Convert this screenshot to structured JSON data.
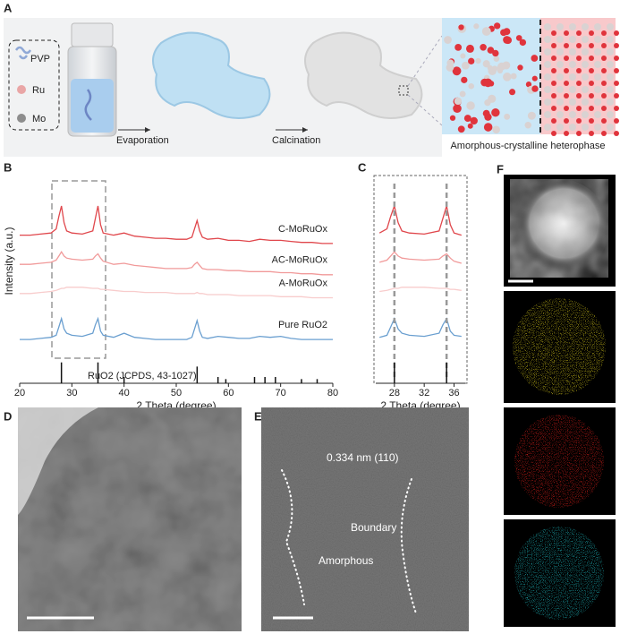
{
  "labels": [
    "A",
    "B",
    "C",
    "D",
    "E",
    "F"
  ],
  "schematic": {
    "legend": [
      "PVP",
      "Ru",
      "Mo"
    ],
    "steps": [
      "Evaporation",
      "Calcination"
    ],
    "caption": "Amorphous-crystalline heterophase"
  },
  "tem": {
    "annotations": [
      "0.334 nm (110)",
      "Boundary",
      "Amorphous"
    ]
  },
  "chart_data": [
    {
      "type": "line",
      "xlabel": "2 Theta (degree)",
      "ylabel": "Intensity (a.u.)",
      "x": [
        20,
        22,
        24,
        26,
        27,
        27.5,
        28,
        28.5,
        29,
        30,
        32,
        34,
        34.5,
        35,
        35.5,
        36,
        38,
        40,
        42,
        44,
        46,
        48,
        50,
        52,
        53,
        53.5,
        54,
        54.5,
        55,
        56,
        58,
        60,
        62,
        64,
        66,
        68,
        70,
        72,
        74,
        76,
        78,
        80
      ],
      "xlim": [
        20,
        80
      ],
      "xticks": [
        20,
        30,
        40,
        50,
        60,
        70,
        80
      ],
      "ylim": [
        0,
        100
      ],
      "series": [
        {
          "name": "C-MoRuOx",
          "color": "#e0474c",
          "values": [
            71,
            71,
            71.5,
            72,
            74,
            80,
            85,
            77,
            73,
            72,
            71.5,
            73,
            79,
            85,
            76,
            72,
            71,
            72,
            70.5,
            70,
            69.5,
            69.5,
            69,
            69,
            70,
            74,
            78,
            73,
            70,
            69,
            69.5,
            68.5,
            68.5,
            68,
            69,
            68.5,
            68.5,
            68,
            67.5,
            67.5,
            67,
            67
          ]
        },
        {
          "name": "AC-MoRuOx",
          "color": "#f19a9a",
          "values": [
            57,
            57,
            57.5,
            58,
            59,
            61,
            63,
            61,
            60,
            59.5,
            59,
            59.5,
            61,
            62,
            60,
            58.5,
            57,
            57.5,
            56.5,
            56,
            55.5,
            55,
            55,
            55,
            55.5,
            57,
            58,
            56.5,
            55,
            54.5,
            54.5,
            54,
            54,
            53.5,
            53.5,
            53.5,
            53,
            53,
            52.5,
            52.5,
            52,
            52
          ]
        },
        {
          "name": "A-MoRuOx",
          "color": "#f8cccc",
          "values": [
            43,
            43,
            43.5,
            44,
            44.5,
            45,
            45.5,
            45.5,
            46,
            46,
            46,
            45.5,
            45.5,
            45.5,
            45,
            45,
            44.5,
            44,
            44,
            43.5,
            43.5,
            43.5,
            43,
            43,
            43,
            43,
            43.5,
            43,
            43,
            42.5,
            42.5,
            42.5,
            42,
            42,
            42,
            42,
            41.5,
            41.5,
            41.5,
            41,
            41,
            41
          ]
        },
        {
          "name": "Pure RuO2",
          "color": "#6a9fd0",
          "values": [
            21,
            21,
            21.5,
            22,
            23,
            27,
            31,
            26,
            24,
            23,
            22.5,
            24,
            28,
            31,
            25,
            23,
            22,
            24,
            22,
            21.5,
            21,
            21,
            21,
            21,
            22,
            26,
            30,
            25,
            22,
            21.5,
            22.5,
            22,
            21.5,
            21.5,
            22.5,
            22,
            22.5,
            21.5,
            21,
            21,
            21,
            21
          ]
        }
      ],
      "reference": {
        "name": "RuO2 (JCPDS, 43-1027)",
        "color": "#111",
        "x": [
          28,
          35,
          40,
          54,
          58,
          59.5,
          65,
          67,
          69,
          74,
          77
        ],
        "values": [
          10,
          10,
          3,
          8,
          3,
          2,
          3,
          3,
          3,
          2,
          2
        ]
      }
    },
    {
      "type": "line",
      "xlabel": "2 Theta (degree)",
      "x": [
        26,
        27,
        27.5,
        28,
        28.5,
        29,
        30,
        32,
        34,
        34.5,
        35,
        35.5,
        36,
        37
      ],
      "xlim": [
        25.5,
        37.5
      ],
      "xticks": [
        28,
        32,
        36
      ],
      "ylim": [
        0,
        100
      ],
      "series": [
        {
          "color": "#e0474c",
          "values": [
            72,
            74,
            80,
            85,
            77,
            73,
            72,
            71.5,
            73,
            79,
            85,
            76,
            72,
            71
          ]
        },
        {
          "color": "#f19a9a",
          "values": [
            58,
            59,
            61,
            63,
            61,
            60,
            59.5,
            59,
            59.5,
            61,
            62,
            60,
            58.5,
            57.5
          ]
        },
        {
          "color": "#f8cccc",
          "values": [
            44,
            44.5,
            45,
            45.5,
            45.5,
            46,
            46,
            46,
            45.5,
            45.5,
            45.5,
            45,
            45,
            44.5
          ]
        },
        {
          "color": "#6a9fd0",
          "values": [
            22,
            23,
            27,
            31,
            26,
            24,
            23,
            22.5,
            24,
            28,
            31,
            25,
            23,
            22.5
          ]
        }
      ],
      "reference": {
        "color": "#111",
        "x": [
          28,
          35
        ],
        "values": [
          10,
          10
        ]
      }
    }
  ]
}
